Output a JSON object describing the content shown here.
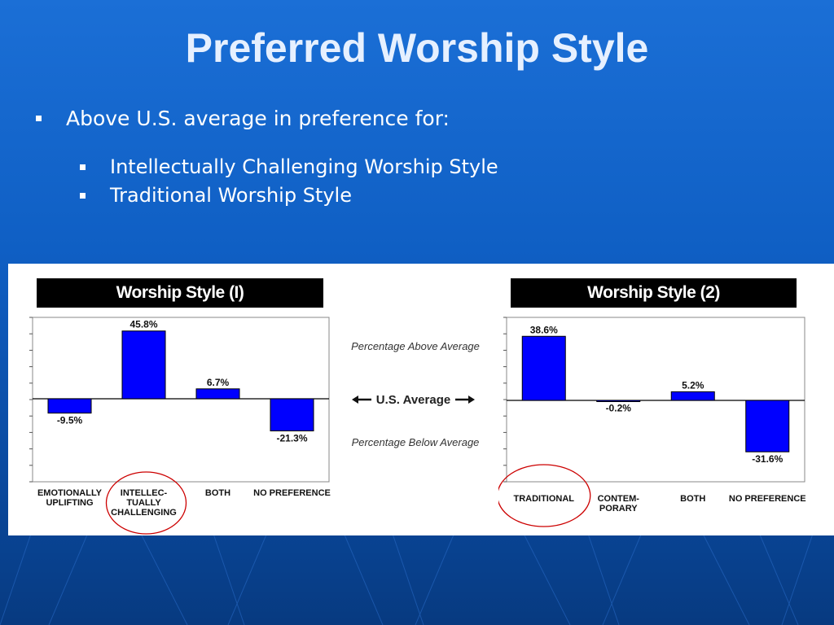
{
  "slide": {
    "title": "Preferred Worship Style",
    "bullet": "Above U.S. average in preference for:",
    "sub_bullets": [
      "Intellectually Challenging Worship Style",
      "Traditional Worship Style"
    ]
  },
  "legend": {
    "above": "Percentage Above Average",
    "us_average": "U.S. Average",
    "below": "Percentage Below Average"
  },
  "colors": {
    "bar": "#0000ff",
    "highlight_circle": "#cc0000"
  },
  "chart_data": [
    {
      "type": "bar",
      "title": "Worship Style (I)",
      "categories": [
        "EMOTIONALLY UPLIFTING",
        "INTELLEC-TUALLY CHALLENGING",
        "BOTH",
        "NO PREFERENCE"
      ],
      "category_lines": [
        [
          "EMOTIONALLY",
          "UPLIFTING"
        ],
        [
          "INTELLEC-",
          "TUALLY",
          "CHALLENGING"
        ],
        [
          "BOTH"
        ],
        [
          "NO PREFERENCE"
        ]
      ],
      "values": [
        -9.5,
        45.8,
        6.7,
        -21.3
      ],
      "value_labels": [
        "-9.5%",
        "45.8%",
        "6.7%",
        "-21.3%"
      ],
      "ylim": [
        -55,
        55
      ],
      "highlighted": "INTELLEC-TUALLY CHALLENGING",
      "xlabel": "",
      "ylabel": ""
    },
    {
      "type": "bar",
      "title": "Worship Style (2)",
      "categories": [
        "TRADITIONAL",
        "CONTEM-PORARY",
        "BOTH",
        "NO PREFERENCE"
      ],
      "category_lines": [
        [
          "TRADITIONAL"
        ],
        [
          "CONTEM-",
          "PORARY"
        ],
        [
          "BOTH"
        ],
        [
          "NO PREFERENCE"
        ]
      ],
      "values": [
        38.6,
        -0.2,
        5.2,
        -31.6
      ],
      "value_labels": [
        "38.6%",
        "-0.2%",
        "5.2%",
        "-31.6%"
      ],
      "ylim": [
        -50,
        50
      ],
      "highlighted": "TRADITIONAL",
      "xlabel": "",
      "ylabel": ""
    }
  ]
}
